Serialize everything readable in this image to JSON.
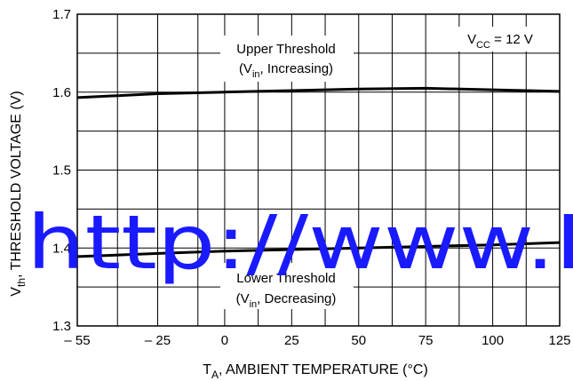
{
  "chart_data": {
    "type": "line",
    "xlim": [
      -55,
      125
    ],
    "ylim": [
      1.3,
      1.7
    ],
    "x_ticks": [
      -55,
      -25,
      0,
      25,
      50,
      75,
      100,
      125
    ],
    "x_tick_labels": [
      "– 55",
      "– 25",
      "0",
      "25",
      "50",
      "75",
      "100",
      "125"
    ],
    "y_ticks": [
      1.3,
      1.4,
      1.5,
      1.6,
      1.7
    ],
    "y_tick_labels": [
      "1.3",
      "1.4",
      "1.5",
      "1.6",
      "1.7"
    ],
    "x_minor_gridlines": [
      -40,
      -10,
      12.5,
      37.5,
      62.5,
      87.5,
      112.5
    ],
    "y_minor_gridlines": [
      1.35,
      1.45,
      1.55,
      1.65
    ],
    "grid": true,
    "xlabel": {
      "main": "T",
      "sub": "A",
      "rest": ", AMBIENT TEMPERATURE (°C)"
    },
    "ylabel": {
      "main": "V",
      "sub": "th",
      "rest": ", THRESHOLD VOLTAGE (V)"
    },
    "series": [
      {
        "key": "upper",
        "x": [
          -55,
          -25,
          0,
          25,
          50,
          75,
          100,
          125
        ],
        "y": [
          1.593,
          1.598,
          1.6,
          1.602,
          1.604,
          1.605,
          1.603,
          1.601
        ]
      },
      {
        "key": "lower",
        "x": [
          -55,
          -25,
          0,
          25,
          50,
          75,
          100,
          125
        ],
        "y": [
          1.389,
          1.393,
          1.396,
          1.398,
          1.4,
          1.402,
          1.404,
          1.407
        ]
      }
    ],
    "annotations": {
      "upper_line1": "Upper Threshold",
      "upper_line2": {
        "pre": "(V",
        "sub": "in",
        "post": ", Increasing)"
      },
      "lower_line1": "Lower Threshold",
      "lower_line2": {
        "pre": "(V",
        "sub": "in",
        "post": ", Decreasing)"
      },
      "vcc": {
        "pre": "V",
        "sub": "CC",
        "post": " = 12 V"
      }
    }
  },
  "watermark": "http://www.E",
  "colors": {
    "line": "#000000",
    "grid": "#000000",
    "watermark": "#1a1aff"
  }
}
